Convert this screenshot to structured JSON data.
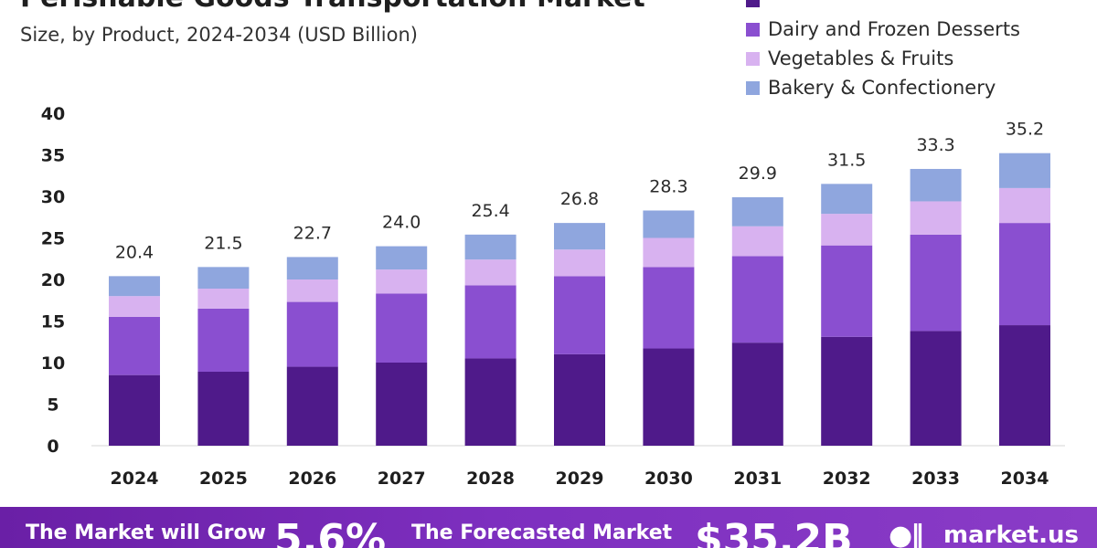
{
  "title": "Perishable Goods Transportation Market",
  "subtitle": "Size, by Product, 2024-2034 (USD Billion)",
  "footer": {
    "grow_text": "The Market will Grow",
    "cagr": "5.6%",
    "forecast_text": "The Forecasted Market",
    "forecast_value": "$35.2B",
    "logo_icon": "marketus-logo-icon",
    "logo_text": "market.us"
  },
  "chart_data": {
    "type": "bar",
    "stacked": true,
    "categories": [
      "2024",
      "2025",
      "2026",
      "2027",
      "2028",
      "2029",
      "2030",
      "2031",
      "2032",
      "2033",
      "2034"
    ],
    "series": [
      {
        "name": "",
        "color": "#4f1a8a",
        "values": [
          8.5,
          8.9,
          9.5,
          10.0,
          10.5,
          11.0,
          11.7,
          12.4,
          13.1,
          13.8,
          14.5
        ]
      },
      {
        "name": "Dairy and Frozen Desserts",
        "color": "#8a4fd0",
        "values": [
          7.0,
          7.6,
          7.8,
          8.3,
          8.8,
          9.4,
          9.8,
          10.4,
          11.0,
          11.6,
          12.3
        ]
      },
      {
        "name": "Vegetables & Fruits",
        "color": "#d8b2f0",
        "values": [
          2.5,
          2.4,
          2.7,
          2.9,
          3.1,
          3.2,
          3.5,
          3.6,
          3.8,
          4.0,
          4.2
        ]
      },
      {
        "name": "Bakery & Confectionery",
        "color": "#8fa6de",
        "values": [
          2.4,
          2.6,
          2.7,
          2.8,
          3.0,
          3.2,
          3.3,
          3.5,
          3.6,
          3.9,
          4.2
        ]
      }
    ],
    "totals": [
      "20.4",
      "21.5",
      "22.7",
      "24.0",
      "25.4",
      "26.8",
      "28.3",
      "29.9",
      "31.5",
      "33.3",
      "35.2"
    ],
    "yticks": [
      0,
      5,
      10,
      15,
      20,
      25,
      30,
      35,
      40
    ],
    "ylim": [
      0,
      40
    ],
    "grid": false,
    "legend_position": "top-right"
  }
}
